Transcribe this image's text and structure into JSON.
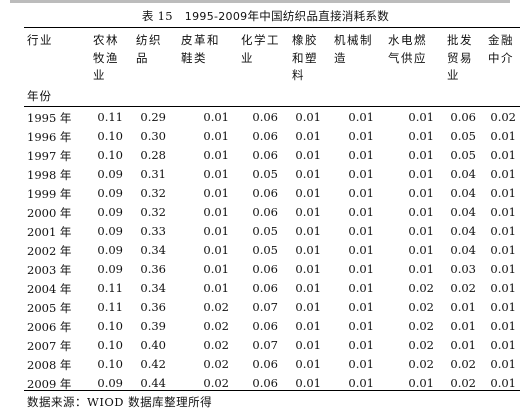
{
  "table": {
    "title_prefix": "表 15",
    "title_years": "1995-2009",
    "title_text": "年中国纺织品直接消耗系数",
    "corner_top": "行业",
    "corner_bottom": "年份",
    "columns": [
      "农林\n牧渔\n业",
      "纺织\n品",
      "皮革和\n鞋类",
      "化学工\n业",
      "橡胶\n和塑\n料",
      "机械制\n造",
      "水电燃\n气供应",
      "批发\n贸易\n业",
      "金融\n中介"
    ],
    "rows": [
      {
        "year": "1995 年",
        "values": [
          "0.11",
          "0.29",
          "0.01",
          "0.06",
          "0.01",
          "0.01",
          "0.01",
          "0.06",
          "0.02"
        ]
      },
      {
        "year": "1996 年",
        "values": [
          "0.10",
          "0.30",
          "0.01",
          "0.06",
          "0.01",
          "0.01",
          "0.01",
          "0.05",
          "0.01"
        ]
      },
      {
        "year": "1997 年",
        "values": [
          "0.10",
          "0.28",
          "0.01",
          "0.06",
          "0.01",
          "0.01",
          "0.01",
          "0.05",
          "0.01"
        ]
      },
      {
        "year": "1998 年",
        "values": [
          "0.09",
          "0.31",
          "0.01",
          "0.05",
          "0.01",
          "0.01",
          "0.01",
          "0.04",
          "0.01"
        ]
      },
      {
        "year": "1999 年",
        "values": [
          "0.09",
          "0.32",
          "0.01",
          "0.06",
          "0.01",
          "0.01",
          "0.01",
          "0.04",
          "0.01"
        ]
      },
      {
        "year": "2000 年",
        "values": [
          "0.09",
          "0.32",
          "0.01",
          "0.06",
          "0.01",
          "0.01",
          "0.01",
          "0.04",
          "0.01"
        ]
      },
      {
        "year": "2001 年",
        "values": [
          "0.09",
          "0.33",
          "0.01",
          "0.05",
          "0.01",
          "0.01",
          "0.01",
          "0.04",
          "0.01"
        ]
      },
      {
        "year": "2002 年",
        "values": [
          "0.09",
          "0.34",
          "0.01",
          "0.05",
          "0.01",
          "0.01",
          "0.01",
          "0.04",
          "0.01"
        ]
      },
      {
        "year": "2003 年",
        "values": [
          "0.09",
          "0.36",
          "0.01",
          "0.06",
          "0.01",
          "0.01",
          "0.01",
          "0.03",
          "0.01"
        ]
      },
      {
        "year": "2004 年",
        "values": [
          "0.11",
          "0.34",
          "0.01",
          "0.06",
          "0.01",
          "0.01",
          "0.02",
          "0.02",
          "0.01"
        ]
      },
      {
        "year": "2005 年",
        "values": [
          "0.11",
          "0.36",
          "0.02",
          "0.07",
          "0.01",
          "0.01",
          "0.02",
          "0.01",
          "0.01"
        ]
      },
      {
        "year": "2006 年",
        "values": [
          "0.10",
          "0.39",
          "0.02",
          "0.06",
          "0.01",
          "0.01",
          "0.02",
          "0.01",
          "0.01"
        ]
      },
      {
        "year": "2007 年",
        "values": [
          "0.10",
          "0.40",
          "0.02",
          "0.07",
          "0.01",
          "0.01",
          "0.02",
          "0.01",
          "0.01"
        ]
      },
      {
        "year": "2008 年",
        "values": [
          "0.10",
          "0.42",
          "0.02",
          "0.06",
          "0.01",
          "0.01",
          "0.02",
          "0.02",
          "0.01"
        ]
      },
      {
        "year": "2009 年",
        "values": [
          "0.09",
          "0.44",
          "0.02",
          "0.06",
          "0.01",
          "0.01",
          "0.01",
          "0.02",
          "0.01"
        ]
      }
    ],
    "source": "数据来源：WIOD 数据库整理所得"
  }
}
